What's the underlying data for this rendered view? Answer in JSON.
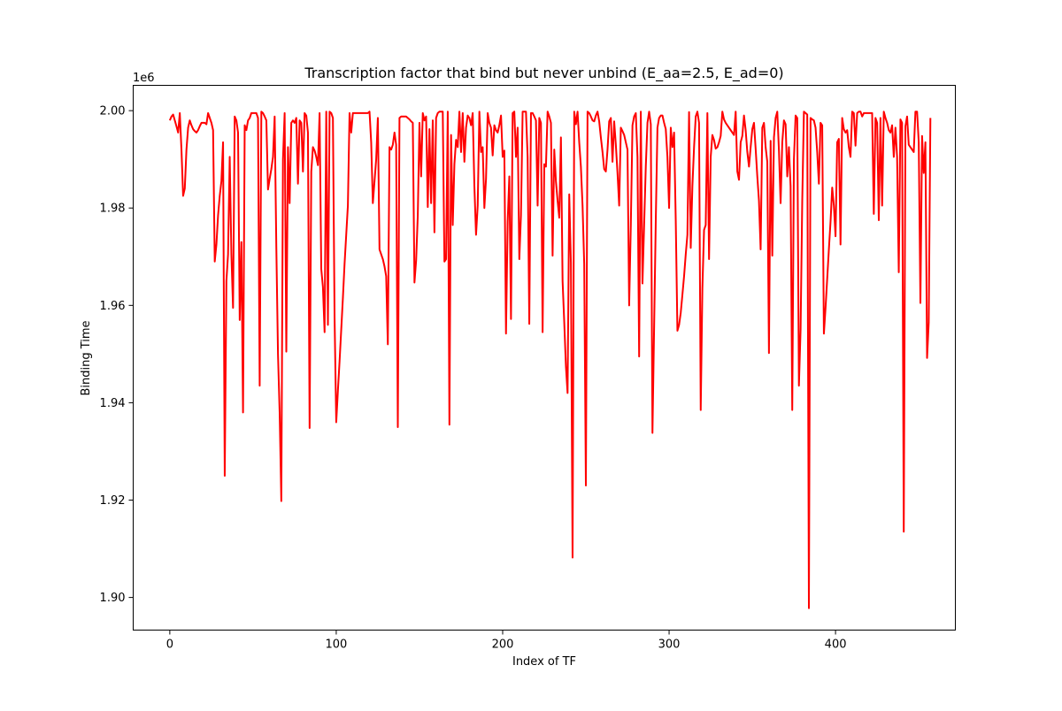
{
  "chart_data": {
    "type": "line",
    "title": "Transcription factor that bind but never unbind (E_aa=2.5, E_ad=0)",
    "xlabel": "Index of TF",
    "ylabel": "Binding Time",
    "y_offset_label": "1e6",
    "xlim": [
      -22,
      472
    ],
    "ylim": [
      1.8933,
      2.0052
    ],
    "x_ticks": [
      0,
      100,
      200,
      300,
      400
    ],
    "x_tick_labels": [
      "0",
      "100",
      "200",
      "300",
      "400"
    ],
    "y_ticks": [
      1.9,
      1.92,
      1.94,
      1.96,
      1.98,
      2.0
    ],
    "y_tick_labels": [
      "1.90",
      "1.92",
      "1.94",
      "1.96",
      "1.98",
      "2.00"
    ],
    "grid": false,
    "color": "#ff0000",
    "series": [
      {
        "values_1e6": [
          1.998,
          1.9988,
          1.9992,
          1.998,
          1.9968,
          1.9955,
          1.9995,
          1.992,
          1.9825,
          1.984,
          1.992,
          1.9965,
          1.998,
          1.997,
          1.9962,
          1.9958,
          1.9955,
          1.996,
          1.9968,
          1.9975,
          1.9975,
          1.9975,
          1.9972,
          1.9995,
          1.9985,
          1.9975,
          1.996,
          1.969,
          1.9725,
          1.9785,
          1.9825,
          1.9855,
          1.9935,
          1.925,
          1.965,
          1.9705,
          1.9905,
          1.9705,
          1.9595,
          1.9988,
          1.998,
          1.9955,
          1.957,
          1.973,
          1.938,
          1.997,
          1.996,
          1.998,
          1.9985,
          1.9995,
          1.9995,
          1.9995,
          1.9995,
          1.9985,
          1.9435,
          1.9998,
          1.9995,
          1.9988,
          1.998,
          1.9838,
          1.986,
          1.988,
          1.9905,
          1.9988,
          1.972,
          1.95,
          1.938,
          1.9198,
          1.99,
          1.9995,
          1.9505,
          1.9925,
          1.981,
          1.9975,
          1.998,
          1.9975,
          1.9985,
          1.985,
          1.998,
          1.9975,
          1.9875,
          1.9995,
          1.999,
          1.9955,
          1.9348,
          1.9875,
          1.9925,
          1.9918,
          1.9905,
          1.9888,
          1.9995,
          1.9675,
          1.9638,
          1.9545,
          1.9998,
          1.956,
          1.9998,
          1.9995,
          1.9985,
          1.9575,
          1.936,
          1.9425,
          1.9485,
          1.955,
          1.9615,
          1.9685,
          1.9745,
          1.9805,
          1.9995,
          1.9955,
          1.9995,
          1.9995,
          1.9995,
          1.9995,
          1.9995,
          1.9995,
          1.9995,
          1.9995,
          1.9995,
          1.9995,
          1.9998,
          1.9935,
          1.981,
          1.9855,
          1.99,
          1.9985,
          1.9715,
          1.9705,
          1.9695,
          1.968,
          1.966,
          1.952,
          1.9925,
          1.992,
          1.993,
          1.9955,
          1.993,
          1.935,
          1.9985,
          1.9988,
          1.9988,
          1.9988,
          1.9988,
          1.9985,
          1.9982,
          1.9978,
          1.9975,
          1.9647,
          1.9692,
          1.9785,
          1.9975,
          1.9865,
          1.9995,
          1.998,
          1.9988,
          1.9802,
          1.9962,
          1.981,
          1.998,
          1.975,
          1.9985,
          1.9995,
          1.9998,
          1.9998,
          1.9998,
          1.969,
          1.9695,
          1.9998,
          1.9355,
          1.995,
          1.9765,
          1.989,
          1.994,
          1.9925,
          1.9998,
          1.9915,
          1.9995,
          1.9895,
          1.9965,
          1.999,
          1.9985,
          1.997,
          1.9995,
          1.9845,
          1.9745,
          1.9805,
          1.9998,
          1.9915,
          1.9925,
          1.98,
          1.986,
          1.9995,
          1.9975,
          1.9965,
          1.9908,
          1.997,
          1.996,
          1.9955,
          1.997,
          1.999,
          1.9905,
          1.9918,
          1.9542,
          1.9772,
          1.9865,
          1.9572,
          1.9995,
          1.9998,
          1.9905,
          1.9965,
          1.9695,
          1.9785,
          1.9998,
          1.9998,
          1.9998,
          1.9905,
          1.9562,
          1.9995,
          1.9995,
          1.9988,
          1.998,
          1.9805,
          1.9985,
          1.9975,
          1.9545,
          1.989,
          1.9885,
          1.9998,
          1.9988,
          1.9975,
          1.9702,
          1.992,
          1.9855,
          1.9815,
          1.978,
          1.9945,
          1.965,
          1.9565,
          1.9475,
          1.942,
          1.9828,
          1.9688,
          1.9082,
          1.9998,
          1.9972,
          1.9998,
          1.9935,
          1.9885,
          1.9805,
          1.9685,
          1.923,
          1.9998,
          1.9995,
          1.9988,
          1.998,
          1.9978,
          1.999,
          1.9998,
          1.9978,
          1.9945,
          1.9915,
          1.988,
          1.9875,
          1.992,
          1.9978,
          1.9985,
          1.9895,
          1.9978,
          1.993,
          1.9872,
          1.9805,
          1.9965,
          1.9958,
          1.995,
          1.9935,
          1.992,
          1.96,
          1.9765,
          1.997,
          1.9988,
          1.9995,
          1.9905,
          1.9495,
          1.9998,
          1.9645,
          1.9765,
          1.9885,
          1.9975,
          1.9998,
          1.9972,
          1.9338,
          1.9555,
          1.9775,
          1.9965,
          1.9985,
          1.999,
          1.999,
          1.9975,
          1.9962,
          1.9905,
          1.98,
          1.9965,
          1.9925,
          1.9955,
          1.9775,
          1.9548,
          1.956,
          1.9585,
          1.9622,
          1.966,
          1.9705,
          1.9745,
          1.9997,
          1.9718,
          1.9845,
          1.9925,
          1.9988,
          1.9998,
          1.9975,
          1.9385,
          1.9635,
          1.9755,
          1.9765,
          1.9995,
          1.9695,
          1.9905,
          1.995,
          1.994,
          1.9922,
          1.9925,
          1.9935,
          1.9948,
          1.9998,
          1.9982,
          1.9975,
          1.997,
          1.9965,
          1.996,
          1.9955,
          1.995,
          1.9998,
          1.9875,
          1.9858,
          1.9935,
          1.9948,
          1.999,
          1.996,
          1.9915,
          1.9885,
          1.9925,
          1.9962,
          1.9975,
          1.9922,
          1.9865,
          1.9815,
          1.9715,
          1.9965,
          1.9975,
          1.9925,
          1.9895,
          1.9502,
          1.9938,
          1.9702,
          1.9945,
          1.9985,
          1.9998,
          1.9918,
          1.981,
          1.9935,
          1.998,
          1.9972,
          1.9865,
          1.9925,
          1.9845,
          1.9385,
          1.99,
          1.999,
          1.9985,
          1.9435,
          1.955,
          1.9815,
          1.9998,
          1.9995,
          1.9992,
          1.8978,
          1.9985,
          1.9982,
          1.998,
          1.9965,
          1.9915,
          1.985,
          1.9975,
          1.997,
          1.9542,
          1.9595,
          1.9655,
          1.9715,
          1.9772,
          1.9842,
          1.9805,
          1.9742,
          1.9935,
          1.9942,
          1.9725,
          1.9985,
          1.9962,
          1.9955,
          1.996,
          1.9925,
          1.9905,
          1.9998,
          1.9995,
          1.9928,
          1.9995,
          1.9998,
          1.9998,
          1.9988,
          1.9995,
          1.9995,
          1.9995,
          1.9995,
          1.9995,
          1.9995,
          1.9788,
          1.9985,
          1.9975,
          1.9775,
          1.9985,
          1.9805,
          1.9998,
          1.9985,
          1.9975,
          1.996,
          1.9955,
          1.997,
          1.9905,
          1.9965,
          1.9905,
          1.9668,
          1.9982,
          1.9975,
          1.9135,
          1.9968,
          1.9988,
          1.993,
          1.9925,
          1.992,
          1.9915,
          1.9998,
          1.9998,
          1.9935,
          1.9605,
          1.9948,
          1.9872,
          1.9935,
          1.9492,
          1.9565,
          1.9985
        ]
      }
    ]
  }
}
